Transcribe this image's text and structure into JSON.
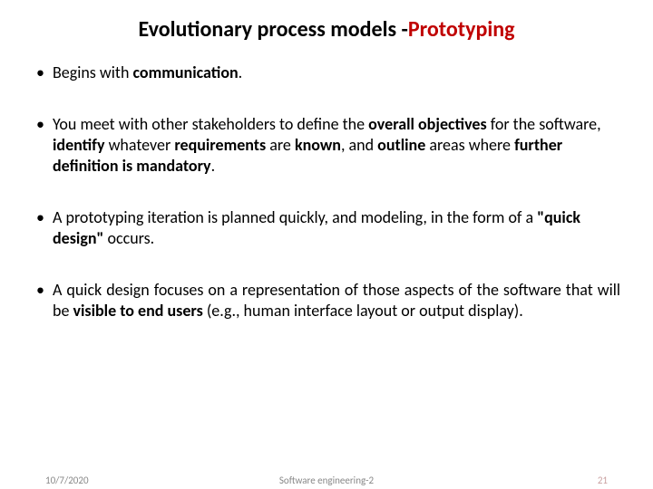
{
  "title": {
    "part1": "Evolutionary  process models -",
    "part2": "Prototyping",
    "color_part1": "#000000",
    "color_part2": "#c00000",
    "fontsize": 24
  },
  "bullets": [
    {
      "runs": [
        {
          "t": "Begins with ",
          "b": false
        },
        {
          "t": "communication",
          "b": true
        },
        {
          "t": ".",
          "b": false
        }
      ],
      "justify": false
    },
    {
      "runs": [
        {
          "t": "You meet with other stakeholders to define the ",
          "b": false
        },
        {
          "t": "overall objectives ",
          "b": true
        },
        {
          "t": "for the software, ",
          "b": false
        },
        {
          "t": "identify ",
          "b": true
        },
        {
          "t": "whatever ",
          "b": false
        },
        {
          "t": "requirements ",
          "b": true
        },
        {
          "t": "are ",
          "b": false
        },
        {
          "t": "known",
          "b": true
        },
        {
          "t": ", and ",
          "b": false
        },
        {
          "t": "outline ",
          "b": true
        },
        {
          "t": "areas where ",
          "b": false
        },
        {
          "t": "further definition is mandatory",
          "b": true
        },
        {
          "t": ".",
          "b": false
        }
      ],
      "justify": false
    },
    {
      "runs": [
        {
          "t": "A prototyping iteration is planned quickly, and modeling, in the form of a ",
          "b": false
        },
        {
          "t": "\"quick design\" ",
          "b": true
        },
        {
          "t": "occurs.",
          "b": false
        }
      ],
      "justify": false
    },
    {
      "runs": [
        {
          "t": "A quick design focuses on a representation of those aspects of the software that will be ",
          "b": false
        },
        {
          "t": "visible to end users ",
          "b": true
        },
        {
          "t": "(e.g., human interface layout or output display).",
          "b": false
        }
      ],
      "justify": true
    }
  ],
  "footer": {
    "date": "10/7/2020",
    "center": "Software engineering-2",
    "page": "21",
    "fontsize": 11,
    "color": "#888888",
    "page_color": "#c9a0a0"
  },
  "body_fontsize": 18,
  "background_color": "#ffffff"
}
